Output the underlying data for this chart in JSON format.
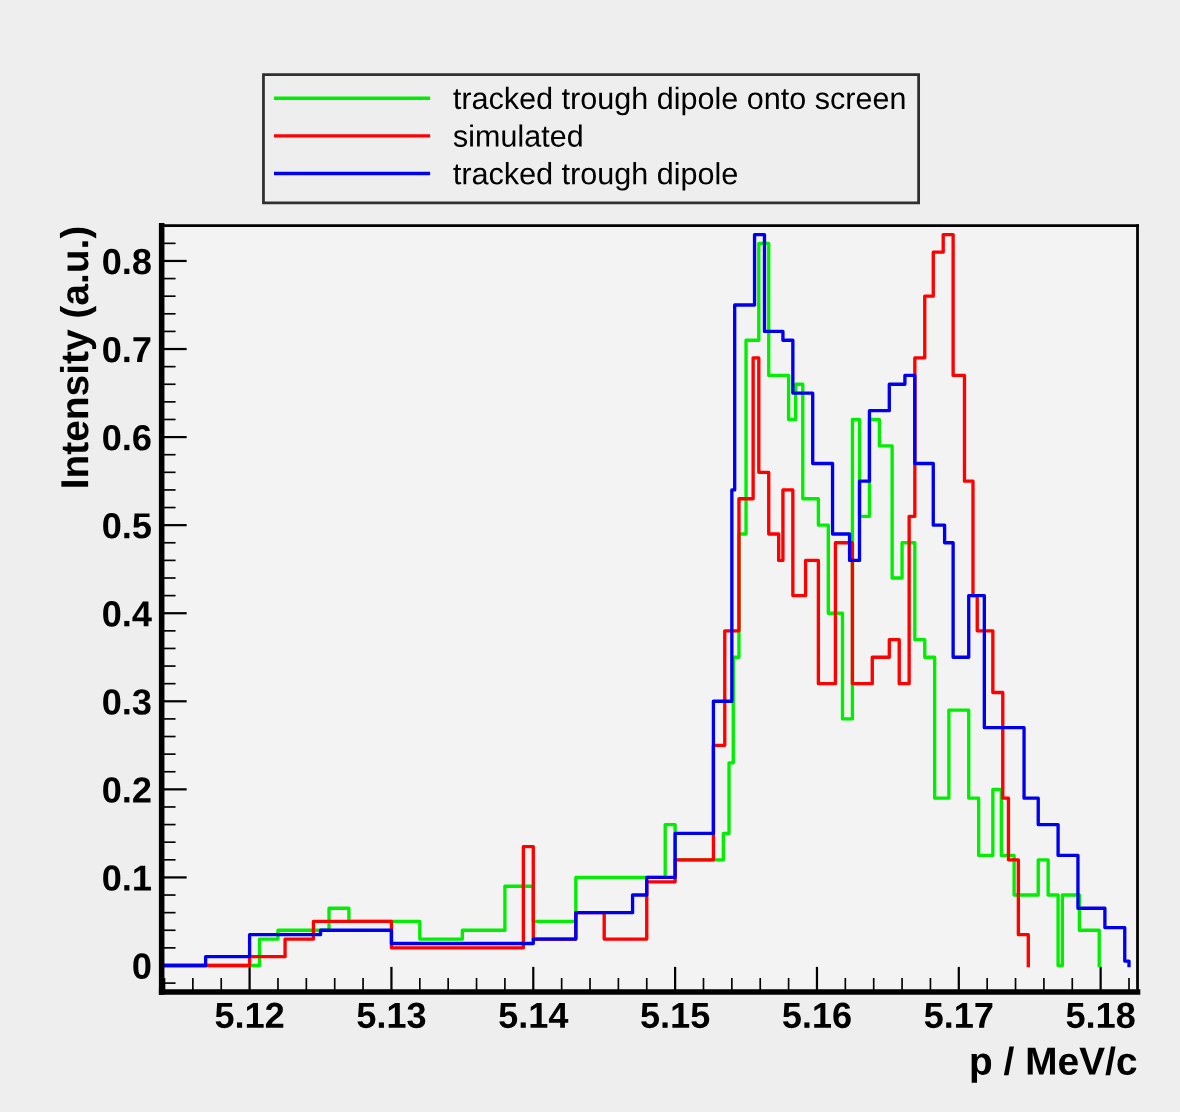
{
  "chart_data": {
    "type": "step",
    "xlabel": "p / MeV/c",
    "ylabel": "Intensity (a.u.)",
    "xlim": [
      5.1138,
      5.1826
    ],
    "ylim": [
      -0.03,
      0.84
    ],
    "xticks": [
      5.12,
      5.13,
      5.14,
      5.15,
      5.16,
      5.17,
      5.18
    ],
    "yticks": [
      {
        "value": 0,
        "label": "0"
      },
      0.1,
      0.2,
      0.3,
      0.4,
      0.5,
      0.6,
      0.7,
      0.8
    ],
    "grid": false,
    "legend": "top",
    "marker": "none",
    "line_style": "solid",
    "series": [
      {
        "name": "tracked trough dipole onto screen",
        "color": "#00ee00",
        "x": [
          5.1138,
          5.1207,
          5.122,
          5.1256,
          5.127,
          5.132,
          5.135,
          5.138,
          5.14,
          5.143,
          5.1493,
          5.15,
          5.1534,
          5.1538,
          5.1541,
          5.1545,
          5.155,
          5.1559,
          5.1566,
          5.158,
          5.1585,
          5.159,
          5.1601,
          5.1608,
          5.1618,
          5.1625,
          5.163,
          5.1637,
          5.1644,
          5.1653,
          5.166,
          5.1669,
          5.1676,
          5.1683,
          5.1693,
          5.1707,
          5.1714,
          5.1724,
          5.173,
          5.1739,
          5.1756,
          5.1763,
          5.177,
          5.1773,
          5.1785,
          5.1799
        ],
        "values": [
          0,
          0.03,
          0.04,
          0.065,
          0.05,
          0.03,
          0.04,
          0.09,
          0.05,
          0.1,
          0.16,
          0.12,
          0.15,
          0.23,
          0.35,
          0.49,
          0.71,
          0.82,
          0.67,
          0.62,
          0.66,
          0.53,
          0.5,
          0.4,
          0.28,
          0.62,
          0.51,
          0.62,
          0.59,
          0.44,
          0.48,
          0.37,
          0.35,
          0.19,
          0.29,
          0.19,
          0.125,
          0.2,
          0.125,
          0.08,
          0.12,
          0.08,
          0,
          0.08,
          0.04,
          0
        ]
      },
      {
        "name": "simulated",
        "color": "#ff0000",
        "x": [
          5.1138,
          5.12,
          5.1225,
          5.1245,
          5.13,
          5.1393,
          5.14,
          5.143,
          5.145,
          5.148,
          5.15,
          5.1527,
          5.1535,
          5.1545,
          5.1555,
          5.1559,
          5.1566,
          5.1573,
          5.1576,
          5.1583,
          5.1592,
          5.1601,
          5.1613,
          5.1625,
          5.1639,
          5.1651,
          5.1658,
          5.1665,
          5.1669,
          5.1676,
          5.1682,
          5.1689,
          5.1696,
          5.1704,
          5.171,
          5.1713,
          5.1724,
          5.1731,
          5.1735,
          5.1742,
          5.1749
        ],
        "values": [
          0,
          0.01,
          0.03,
          0.05,
          0.02,
          0.135,
          0.03,
          0.06,
          0.03,
          0.095,
          0.12,
          0.25,
          0.38,
          0.53,
          0.69,
          0.56,
          0.49,
          0.46,
          0.54,
          0.42,
          0.46,
          0.32,
          0.48,
          0.32,
          0.35,
          0.37,
          0.32,
          0.51,
          0.69,
          0.76,
          0.81,
          0.83,
          0.67,
          0.55,
          0.42,
          0.38,
          0.31,
          0.19,
          0.12,
          0.035,
          0
        ]
      },
      {
        "name": "tracked trough dipole",
        "color": "#0000ee",
        "x": [
          5.1138,
          5.1169,
          5.12,
          5.125,
          5.13,
          5.14,
          5.143,
          5.147,
          5.148,
          5.15,
          5.1527,
          5.154,
          5.1542,
          5.1556,
          5.1563,
          5.1576,
          5.1583,
          5.1597,
          5.1611,
          5.1623,
          5.163,
          5.1637,
          5.1651,
          5.1662,
          5.1669,
          5.1682,
          5.169,
          5.1696,
          5.1707,
          5.1718,
          5.1732,
          5.1746,
          5.1756,
          5.177,
          5.1784,
          5.1803,
          5.1817,
          5.182
        ],
        "values": [
          0,
          0.01,
          0.035,
          0.04,
          0.025,
          0.03,
          0.06,
          0.08,
          0.1,
          0.15,
          0.3,
          0.54,
          0.75,
          0.83,
          0.72,
          0.71,
          0.65,
          0.57,
          0.49,
          0.46,
          0.55,
          0.63,
          0.66,
          0.67,
          0.57,
          0.5,
          0.48,
          0.35,
          0.42,
          0.27,
          0.27,
          0.19,
          0.16,
          0.125,
          0.065,
          0.043,
          0.005,
          0
        ]
      }
    ]
  }
}
